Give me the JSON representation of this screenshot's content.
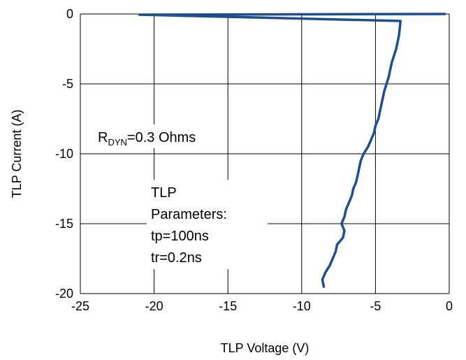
{
  "chart_data": {
    "type": "line",
    "xlabel": "TLP Voltage (V)",
    "ylabel": "TLP Current (A)",
    "xlim": [
      -25,
      0
    ],
    "ylim": [
      -20,
      0
    ],
    "x_ticks": [
      "-25",
      "-20",
      "-15",
      "-10",
      "-5",
      "0"
    ],
    "y_ticks": [
      "0",
      "-5",
      "-10",
      "-15",
      "-20"
    ],
    "grid": true,
    "legend": "none",
    "series": [
      {
        "color": "#1f4e8c",
        "points": [
          [
            -0.3,
            0
          ],
          [
            -21,
            -0.05
          ],
          [
            -3.3,
            -0.5
          ],
          [
            -3.4,
            -1.5
          ],
          [
            -3.6,
            -2.5
          ],
          [
            -3.9,
            -3.5
          ],
          [
            -4.1,
            -4.5
          ],
          [
            -4.4,
            -5.5
          ],
          [
            -4.6,
            -6.5
          ],
          [
            -4.8,
            -7.5
          ],
          [
            -5.0,
            -8.0
          ],
          [
            -5.1,
            -8.5
          ],
          [
            -5.3,
            -9.0
          ],
          [
            -5.5,
            -9.5
          ],
          [
            -5.8,
            -10.0
          ],
          [
            -6.0,
            -10.5
          ],
          [
            -6.1,
            -11.0
          ],
          [
            -6.2,
            -11.5
          ],
          [
            -6.3,
            -12.0
          ],
          [
            -6.5,
            -12.5
          ],
          [
            -6.6,
            -13.0
          ],
          [
            -6.8,
            -13.5
          ],
          [
            -7.0,
            -14.0
          ],
          [
            -7.1,
            -14.5
          ],
          [
            -7.3,
            -15.0
          ],
          [
            -7.1,
            -15.5
          ],
          [
            -7.2,
            -16.0
          ],
          [
            -7.6,
            -16.5
          ],
          [
            -7.7,
            -17.0
          ],
          [
            -7.9,
            -17.5
          ],
          [
            -8.1,
            -18.0
          ],
          [
            -8.4,
            -18.5
          ],
          [
            -8.6,
            -19.0
          ],
          [
            -8.5,
            -19.5
          ]
        ]
      }
    ],
    "annotations": {
      "rdyn_main": "R",
      "rdyn_sub": "DYN",
      "rdyn_value": "=0.3  Ohms",
      "params_lines": [
        "TLP",
        "Parameters:",
        "tp=100ns",
        "tr=0.2ns"
      ]
    }
  }
}
